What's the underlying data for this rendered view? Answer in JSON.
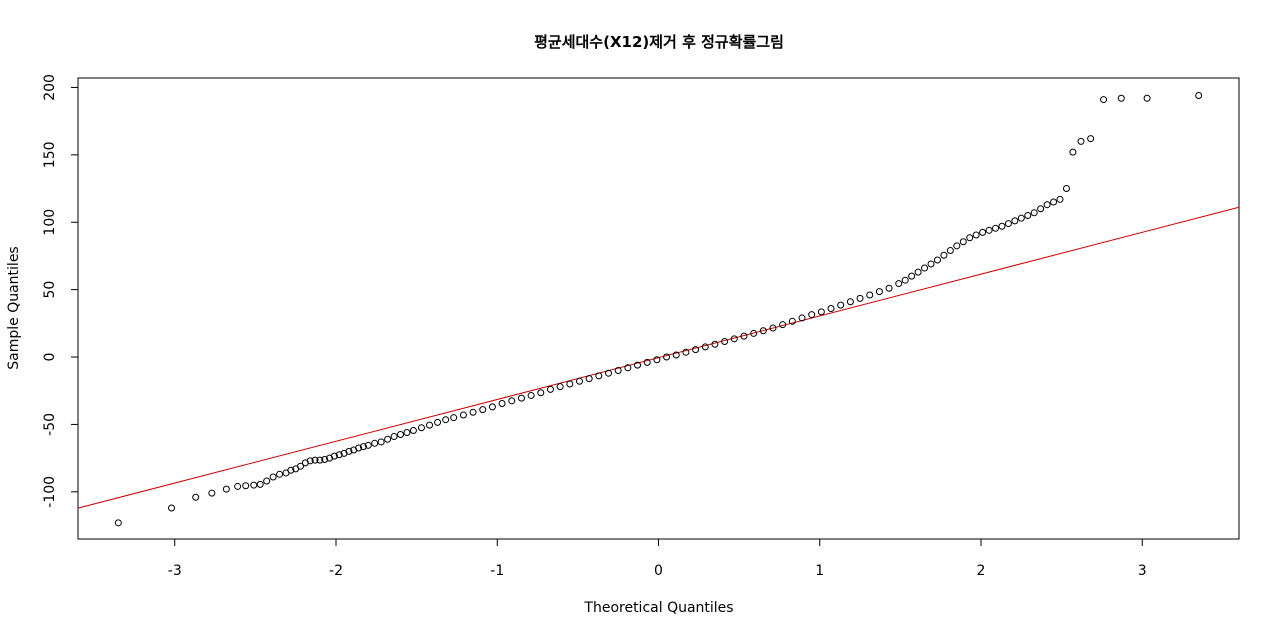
{
  "chart_data": {
    "type": "scatter",
    "title": "평균세대수(X12)제거 후 정규확률그림",
    "xlabel": "Theoretical Quantiles",
    "ylabel": "Sample Quantiles",
    "xlim": [
      -3.6,
      3.6
    ],
    "ylim": [
      -135,
      207
    ],
    "xticks": [
      -3,
      -2,
      -1,
      0,
      1,
      2,
      3
    ],
    "yticks": [
      -100,
      -50,
      0,
      50,
      100,
      150,
      200
    ],
    "grid": false,
    "colors": {
      "points": "#000000",
      "reference_line": "#cc0000"
    },
    "reference_line": {
      "intercept": -0.5,
      "slope": 31
    },
    "series": [
      {
        "values": [
          [
            -3.35,
            -123
          ],
          [
            -3.02,
            -112
          ],
          [
            -2.87,
            -104
          ],
          [
            -2.77,
            -101
          ],
          [
            -2.68,
            -98
          ],
          [
            -2.61,
            -96
          ],
          [
            -2.56,
            -95.5
          ],
          [
            -2.51,
            -95
          ],
          [
            -2.47,
            -94.5
          ],
          [
            -2.43,
            -92
          ],
          [
            -2.39,
            -89
          ],
          [
            -2.35,
            -87
          ],
          [
            -2.31,
            -86
          ],
          [
            -2.28,
            -84
          ],
          [
            -2.25,
            -83
          ],
          [
            -2.22,
            -81
          ],
          [
            -2.19,
            -78.5
          ],
          [
            -2.16,
            -77
          ],
          [
            -2.13,
            -76.5
          ],
          [
            -2.1,
            -76.5
          ],
          [
            -2.07,
            -76
          ],
          [
            -2.04,
            -75
          ],
          [
            -2.01,
            -73.5
          ],
          [
            -1.98,
            -72.5
          ],
          [
            -1.95,
            -71.5
          ],
          [
            -1.92,
            -70
          ],
          [
            -1.89,
            -69
          ],
          [
            -1.86,
            -67.5
          ],
          [
            -1.83,
            -66.5
          ],
          [
            -1.8,
            -65.5
          ],
          [
            -1.76,
            -64
          ],
          [
            -1.72,
            -63
          ],
          [
            -1.68,
            -61
          ],
          [
            -1.64,
            -59
          ],
          [
            -1.6,
            -57.5
          ],
          [
            -1.56,
            -56
          ],
          [
            -1.52,
            -54.5
          ],
          [
            -1.47,
            -52.5
          ],
          [
            -1.42,
            -50.5
          ],
          [
            -1.37,
            -48.5
          ],
          [
            -1.32,
            -46.5
          ],
          [
            -1.27,
            -45
          ],
          [
            -1.21,
            -43
          ],
          [
            -1.15,
            -41
          ],
          [
            -1.09,
            -39
          ],
          [
            -1.03,
            -37
          ],
          [
            -0.97,
            -34.5
          ],
          [
            -0.91,
            -32.5
          ],
          [
            -0.85,
            -30.5
          ],
          [
            -0.79,
            -28.5
          ],
          [
            -0.73,
            -26.5
          ],
          [
            -0.67,
            -24
          ],
          [
            -0.61,
            -22
          ],
          [
            -0.55,
            -20
          ],
          [
            -0.49,
            -18
          ],
          [
            -0.43,
            -16
          ],
          [
            -0.37,
            -14
          ],
          [
            -0.31,
            -12
          ],
          [
            -0.25,
            -10
          ],
          [
            -0.19,
            -8
          ],
          [
            -0.13,
            -6
          ],
          [
            -0.07,
            -4
          ],
          [
            -0.01,
            -2
          ],
          [
            0.05,
            0
          ],
          [
            0.11,
            1.5
          ],
          [
            0.17,
            3.5
          ],
          [
            0.23,
            5.5
          ],
          [
            0.29,
            7.5
          ],
          [
            0.35,
            9.5
          ],
          [
            0.41,
            11.5
          ],
          [
            0.47,
            13.5
          ],
          [
            0.53,
            15.5
          ],
          [
            0.59,
            17.5
          ],
          [
            0.65,
            19.5
          ],
          [
            0.71,
            21.5
          ],
          [
            0.77,
            24
          ],
          [
            0.83,
            26.5
          ],
          [
            0.89,
            29
          ],
          [
            0.95,
            31.5
          ],
          [
            1.01,
            33.5
          ],
          [
            1.07,
            36
          ],
          [
            1.13,
            38.5
          ],
          [
            1.19,
            41
          ],
          [
            1.25,
            43.5
          ],
          [
            1.31,
            46
          ],
          [
            1.37,
            48.5
          ],
          [
            1.43,
            51
          ],
          [
            1.49,
            54.5
          ],
          [
            1.53,
            57
          ],
          [
            1.57,
            60
          ],
          [
            1.61,
            63
          ],
          [
            1.65,
            66
          ],
          [
            1.69,
            69
          ],
          [
            1.73,
            72
          ],
          [
            1.77,
            75.5
          ],
          [
            1.81,
            79
          ],
          [
            1.85,
            82.5
          ],
          [
            1.89,
            85.5
          ],
          [
            1.93,
            88.5
          ],
          [
            1.97,
            90.5
          ],
          [
            2.01,
            92.5
          ],
          [
            2.05,
            94
          ],
          [
            2.09,
            95.5
          ],
          [
            2.13,
            97
          ],
          [
            2.17,
            99
          ],
          [
            2.21,
            101
          ],
          [
            2.25,
            103
          ],
          [
            2.29,
            105
          ],
          [
            2.33,
            107
          ],
          [
            2.37,
            110
          ],
          [
            2.41,
            113
          ],
          [
            2.45,
            115
          ],
          [
            2.49,
            117
          ],
          [
            2.53,
            125
          ],
          [
            2.57,
            152
          ],
          [
            2.62,
            160
          ],
          [
            2.68,
            162
          ],
          [
            2.76,
            191
          ],
          [
            2.87,
            192
          ],
          [
            3.03,
            192
          ],
          [
            3.35,
            194
          ]
        ]
      }
    ]
  }
}
